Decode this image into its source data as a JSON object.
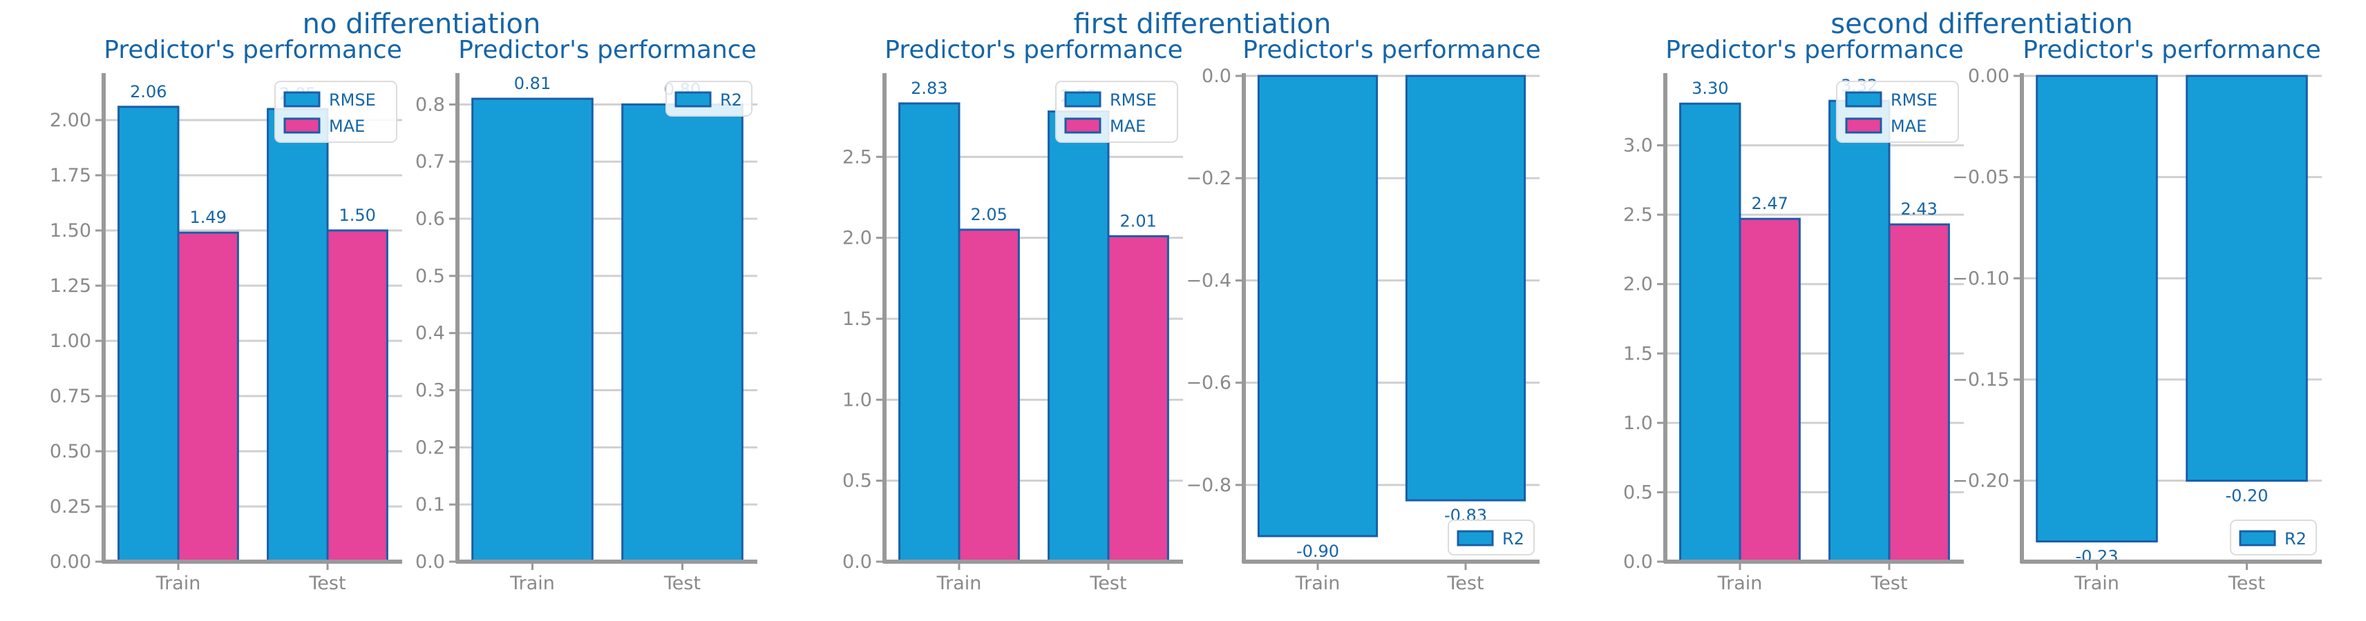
{
  "figure": {
    "groups": [
      {
        "title": "no differentiation"
      },
      {
        "title": "first differentiation"
      },
      {
        "title": "second differentiation"
      }
    ]
  },
  "colors": {
    "bar_blue": "#169dd8",
    "bar_pink": "#e6439a",
    "edge": "#1a5ea8",
    "text": "#1565a8",
    "axis": "#999999",
    "grid": "#d0d0d0",
    "tick_text": "#8a8a8a"
  },
  "chart_data": [
    {
      "type": "bar",
      "title": "Predictor's performance",
      "categories": [
        "Train",
        "Test"
      ],
      "series": [
        {
          "name": "RMSE",
          "values": [
            2.06,
            2.05
          ],
          "labels": [
            "2.06",
            "2.05"
          ]
        },
        {
          "name": "MAE",
          "values": [
            1.49,
            1.5
          ],
          "labels": [
            "1.49",
            "1.50"
          ]
        }
      ],
      "ylim": [
        0,
        2.2
      ],
      "yticks": [
        0.0,
        0.25,
        0.5,
        0.75,
        1.0,
        1.25,
        1.5,
        1.75,
        2.0
      ],
      "ytick_labels": [
        "0.00",
        "0.25",
        "0.50",
        "0.75",
        "1.00",
        "1.25",
        "1.50",
        "1.75",
        "2.00"
      ],
      "legend": "upper-right",
      "grid": true
    },
    {
      "type": "bar",
      "title": "Predictor's performance",
      "categories": [
        "Train",
        "Test"
      ],
      "series": [
        {
          "name": "R2",
          "values": [
            0.81,
            0.8
          ],
          "labels": [
            "0.81",
            "0.80"
          ]
        }
      ],
      "ylim": [
        0,
        0.85
      ],
      "yticks": [
        0.0,
        0.1,
        0.2,
        0.3,
        0.4,
        0.5,
        0.6,
        0.7,
        0.8
      ],
      "ytick_labels": [
        "0.0",
        "0.1",
        "0.2",
        "0.3",
        "0.4",
        "0.5",
        "0.6",
        "0.7",
        "0.8"
      ],
      "legend": "upper-right",
      "grid": true
    },
    {
      "type": "bar",
      "title": "Predictor's performance",
      "categories": [
        "Train",
        "Test"
      ],
      "series": [
        {
          "name": "RMSE",
          "values": [
            2.83,
            2.78
          ],
          "labels": [
            "2.83",
            "2.78"
          ]
        },
        {
          "name": "MAE",
          "values": [
            2.05,
            2.01
          ],
          "labels": [
            "2.05",
            "2.01"
          ]
        }
      ],
      "ylim": [
        0,
        3.0
      ],
      "yticks": [
        0.0,
        0.5,
        1.0,
        1.5,
        2.0,
        2.5
      ],
      "ytick_labels": [
        "0.0",
        "0.5",
        "1.0",
        "1.5",
        "2.0",
        "2.5"
      ],
      "legend": "upper-right",
      "grid": true
    },
    {
      "type": "bar",
      "title": "Predictor's performance",
      "categories": [
        "Train",
        "Test"
      ],
      "series": [
        {
          "name": "R2",
          "values": [
            -0.9,
            -0.83
          ],
          "labels": [
            "-0.90",
            "-0.83"
          ]
        }
      ],
      "ylim": [
        -0.95,
        0.0
      ],
      "yticks": [
        0.0,
        -0.2,
        -0.4,
        -0.6,
        -0.8
      ],
      "ytick_labels": [
        "0.0",
        "−0.2",
        "−0.4",
        "−0.6",
        "−0.8"
      ],
      "legend": "lower-right",
      "grid": true
    },
    {
      "type": "bar",
      "title": "Predictor's performance",
      "categories": [
        "Train",
        "Test"
      ],
      "series": [
        {
          "name": "RMSE",
          "values": [
            3.3,
            3.32
          ],
          "labels": [
            "3.30",
            "3.32"
          ]
        },
        {
          "name": "MAE",
          "values": [
            2.47,
            2.43
          ],
          "labels": [
            "2.47",
            "2.43"
          ]
        }
      ],
      "ylim": [
        0,
        3.5
      ],
      "yticks": [
        0.0,
        0.5,
        1.0,
        1.5,
        2.0,
        2.5,
        3.0
      ],
      "ytick_labels": [
        "0.0",
        "0.5",
        "1.0",
        "1.5",
        "2.0",
        "2.5",
        "3.0"
      ],
      "legend": "upper-right",
      "grid": true
    },
    {
      "type": "bar",
      "title": "Predictor's performance",
      "categories": [
        "Train",
        "Test"
      ],
      "series": [
        {
          "name": "R2",
          "values": [
            -0.23,
            -0.2
          ],
          "labels": [
            "-0.23",
            "-0.20"
          ]
        }
      ],
      "ylim": [
        -0.24,
        0.0
      ],
      "yticks": [
        0.0,
        -0.05,
        -0.1,
        -0.15,
        -0.2
      ],
      "ytick_labels": [
        "0.00",
        "−0.05",
        "−0.10",
        "−0.15",
        "−0.20"
      ],
      "legend": "lower-right",
      "grid": true
    }
  ]
}
